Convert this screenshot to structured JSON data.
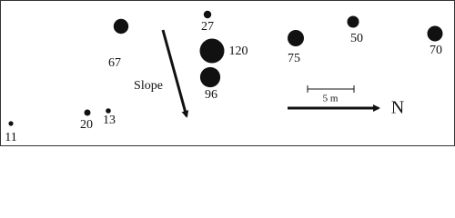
{
  "nodes": [
    {
      "value": 11
    },
    {
      "value": 20
    },
    {
      "value": 13
    },
    {
      "value": 67
    },
    {
      "value": 27
    },
    {
      "value": 120
    },
    {
      "value": 96
    },
    {
      "value": 75
    },
    {
      "value": 50
    },
    {
      "value": 70
    }
  ],
  "slope_label": "Slope",
  "scale_label": "5 m",
  "north_label": "N"
}
